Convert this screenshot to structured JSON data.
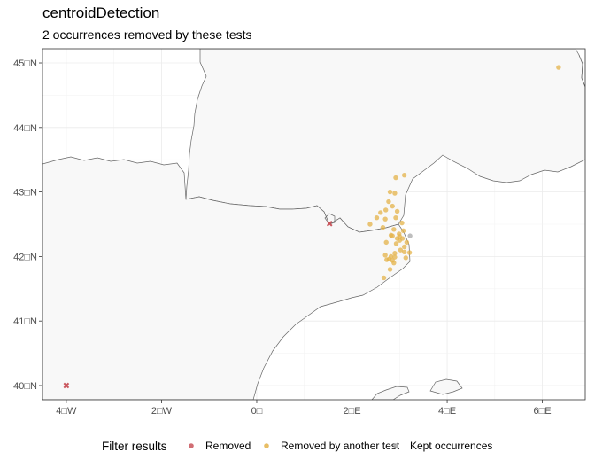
{
  "chart_data": {
    "type": "scatter",
    "title": "centroidDetection",
    "subtitle": "2 occurrences removed by these tests",
    "xlim": [
      -4.5,
      6.9
    ],
    "ylim": [
      39.78,
      45.22
    ],
    "x_ticks": [
      {
        "value": -4,
        "label": "4□W"
      },
      {
        "value": -2,
        "label": "2□W"
      },
      {
        "value": 0,
        "label": "0□"
      },
      {
        "value": 2,
        "label": "2□E"
      },
      {
        "value": 4,
        "label": "4□E"
      },
      {
        "value": 6,
        "label": "6□E"
      }
    ],
    "y_ticks": [
      {
        "value": 40,
        "label": "40□N"
      },
      {
        "value": 41,
        "label": "41□N"
      },
      {
        "value": 42,
        "label": "42□N"
      },
      {
        "value": 43,
        "label": "43□N"
      },
      {
        "value": 44,
        "label": "44□N"
      },
      {
        "value": 45,
        "label": "45□N"
      }
    ],
    "grid": true,
    "legend_placement": "bottom",
    "legend_title": "Filter results",
    "series": [
      {
        "name": "Removed",
        "color": "#c9555c",
        "marker": "cross",
        "points": [
          [
            1.53,
            42.51
          ],
          [
            -4.0,
            40.0
          ]
        ]
      },
      {
        "name": "Removed by another test",
        "color": "#e4b34a",
        "marker": "circle",
        "points": [
          [
            6.34,
            44.93
          ],
          [
            2.92,
            43.22
          ],
          [
            3.1,
            43.26
          ],
          [
            2.8,
            43.0
          ],
          [
            2.9,
            42.98
          ],
          [
            2.77,
            42.85
          ],
          [
            2.85,
            42.78
          ],
          [
            2.71,
            42.72
          ],
          [
            2.6,
            42.68
          ],
          [
            2.52,
            42.6
          ],
          [
            2.7,
            42.58
          ],
          [
            2.95,
            42.7
          ],
          [
            2.92,
            42.6
          ],
          [
            3.05,
            42.52
          ],
          [
            2.38,
            42.5
          ],
          [
            2.65,
            42.45
          ],
          [
            2.88,
            42.42
          ],
          [
            3.08,
            42.4
          ],
          [
            2.99,
            42.35
          ],
          [
            2.85,
            42.32
          ],
          [
            2.95,
            42.28
          ],
          [
            3.0,
            42.25
          ],
          [
            2.93,
            42.2
          ],
          [
            3.15,
            42.22
          ],
          [
            3.1,
            42.15
          ],
          [
            2.72,
            42.22
          ],
          [
            3.02,
            42.1
          ],
          [
            3.1,
            42.07
          ],
          [
            3.21,
            42.06
          ],
          [
            2.9,
            42.05
          ],
          [
            2.7,
            42.02
          ],
          [
            2.82,
            42.0
          ],
          [
            2.9,
            41.99
          ],
          [
            2.78,
            41.96
          ],
          [
            2.85,
            41.94
          ],
          [
            2.73,
            41.95
          ],
          [
            3.13,
            41.98
          ],
          [
            2.88,
            41.9
          ],
          [
            2.8,
            41.8
          ],
          [
            2.67,
            41.67
          ],
          [
            2.82,
            42.33
          ],
          [
            3.0,
            42.31
          ],
          [
            3.06,
            42.28
          ]
        ]
      },
      {
        "name": "Kept occurrences",
        "color": "#a8a8a8",
        "marker": "circle",
        "points": [
          [
            3.22,
            42.32
          ]
        ]
      }
    ]
  }
}
